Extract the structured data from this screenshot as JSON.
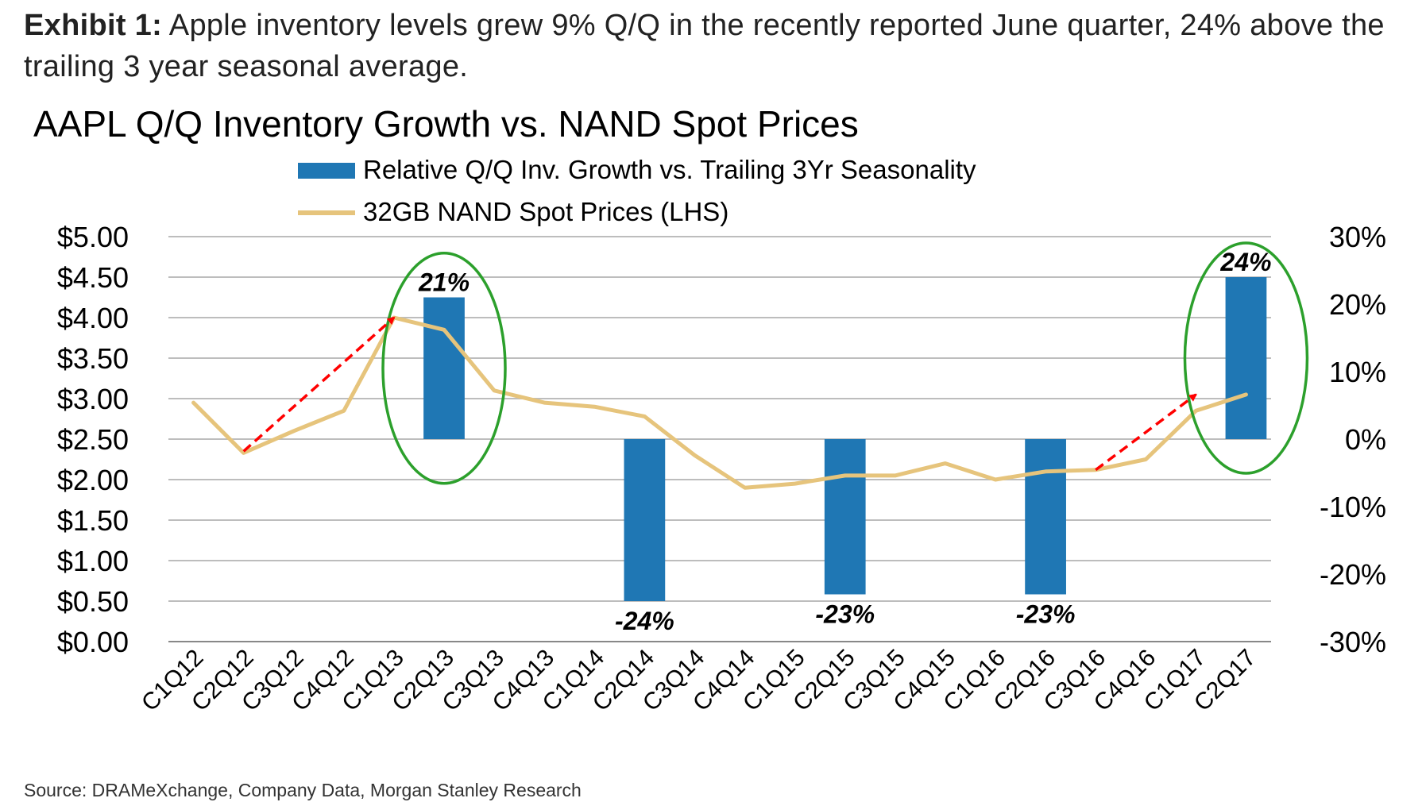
{
  "exhibit": {
    "label": "Exhibit 1:",
    "caption": "Apple inventory levels grew 9% Q/Q in the recently reported June quarter, 24% above the trailing 3 year seasonal average."
  },
  "source": "Source: DRAMeXchange, Company Data, Morgan Stanley Research",
  "chart_data": {
    "type": "bar+line",
    "title": "AAPL Q/Q Inventory Growth vs. NAND Spot Prices",
    "categories": [
      "C1Q12",
      "C2Q12",
      "C3Q12",
      "C4Q12",
      "C1Q13",
      "C2Q13",
      "C3Q13",
      "C4Q13",
      "C1Q14",
      "C2Q14",
      "C3Q14",
      "C4Q14",
      "C1Q15",
      "C2Q15",
      "C3Q15",
      "C4Q15",
      "C1Q16",
      "C2Q16",
      "C3Q16",
      "C4Q16",
      "C1Q17",
      "C2Q17"
    ],
    "series": [
      {
        "name": "Relative Q/Q Inv. Growth vs. Trailing 3Yr Seasonality",
        "type": "bar",
        "axis": "right",
        "color": "#1f77b4",
        "values": [
          null,
          null,
          null,
          null,
          null,
          21,
          null,
          null,
          null,
          -24,
          null,
          null,
          null,
          -23,
          null,
          null,
          null,
          -23,
          null,
          null,
          null,
          24
        ],
        "labels": [
          null,
          null,
          null,
          null,
          null,
          "21%",
          null,
          null,
          null,
          "-24%",
          null,
          null,
          null,
          "-23%",
          null,
          null,
          null,
          "-23%",
          null,
          null,
          null,
          "24%"
        ]
      },
      {
        "name": "32GB NAND Spot Prices (LHS)",
        "type": "line",
        "axis": "left",
        "color": "#e6c47c",
        "values": [
          2.95,
          2.33,
          2.6,
          2.85,
          4.0,
          3.85,
          3.1,
          2.95,
          2.9,
          2.78,
          2.3,
          1.9,
          1.95,
          2.05,
          2.05,
          2.2,
          2.0,
          2.1,
          2.12,
          2.25,
          2.85,
          3.05
        ]
      }
    ],
    "left_axis": {
      "min": 0,
      "max": 5,
      "step": 0.5,
      "ticks": [
        "$0.00",
        "$0.50",
        "$1.00",
        "$1.50",
        "$2.00",
        "$2.50",
        "$3.00",
        "$3.50",
        "$4.00",
        "$4.50",
        "$5.00"
      ]
    },
    "right_axis": {
      "min": -30,
      "max": 30,
      "step": 10,
      "ticks": [
        "-30%",
        "-20%",
        "-10%",
        "0%",
        "10%",
        "20%",
        "30%"
      ]
    },
    "legend": "top-center",
    "grid": true,
    "annotations": {
      "highlight_circles": [
        "C2Q13",
        "C2Q17"
      ],
      "trend_arrows": [
        {
          "from": {
            "category": "C2Q12",
            "value": 2.35
          },
          "to": {
            "category": "C1Q13",
            "value": 4.0
          }
        },
        {
          "from": {
            "category": "C3Q16",
            "value": 2.12
          },
          "to": {
            "category": "C1Q17",
            "value": 3.05
          }
        }
      ],
      "circle_color": "#2ca02c",
      "arrow_color": "#ff0000"
    }
  }
}
